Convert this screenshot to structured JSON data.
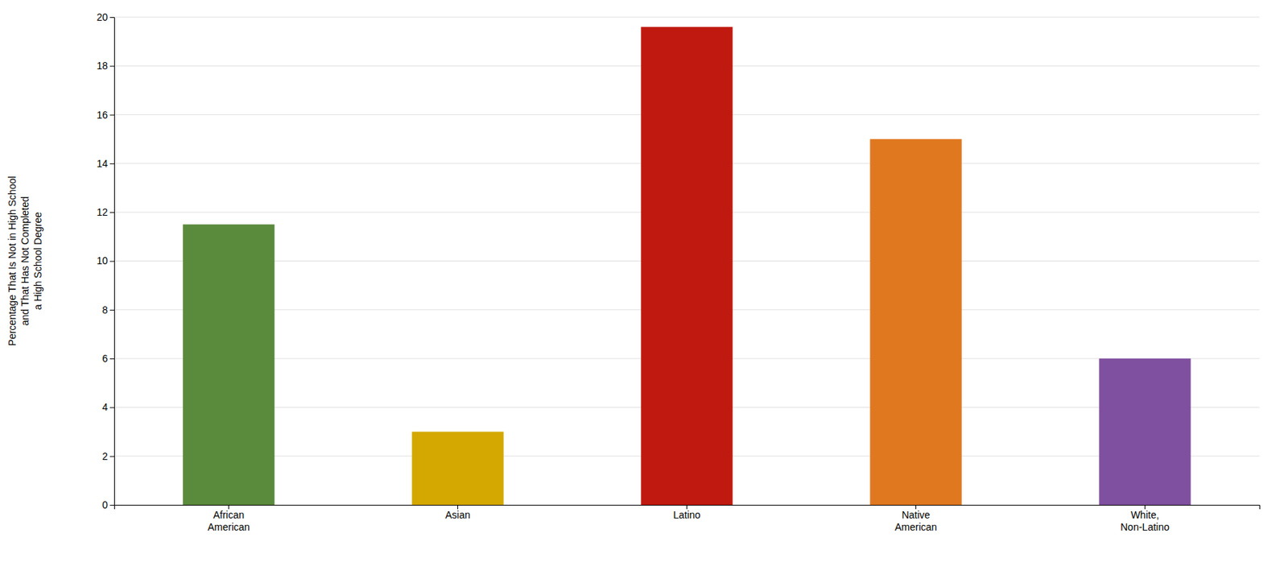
{
  "chart_data": {
    "type": "bar",
    "categories": [
      "African\nAmerican",
      "Asian",
      "Latino",
      "Native\nAmerican",
      "White,\nNon-Latino"
    ],
    "values": [
      11.5,
      3.0,
      19.6,
      15.0,
      6.0
    ],
    "colors": [
      "#5a8a3c",
      "#d4a800",
      "#c01a10",
      "#e07820",
      "#8050a0"
    ],
    "ylabel": "Percentage That Is Not in High School\nand That Has Not Completed\na High School Degree",
    "ylim": [
      0,
      20
    ],
    "yticks": [
      0,
      2,
      4,
      6,
      8,
      10,
      12,
      14,
      16,
      18,
      20
    ],
    "grid": true
  }
}
